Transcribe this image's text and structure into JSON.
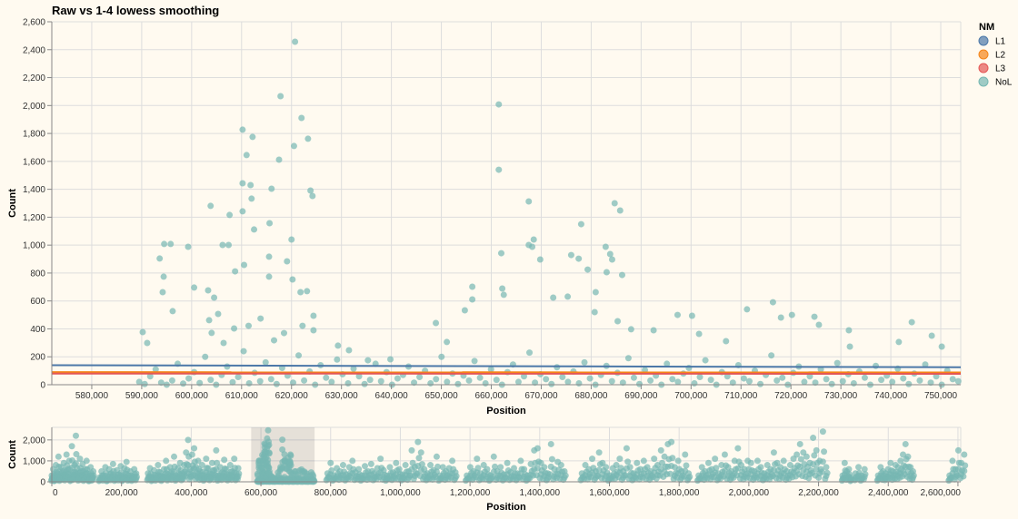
{
  "chart_data": [
    {
      "type": "scatter",
      "title": "Raw vs 1-4 lowess smoothing",
      "xlabel": "Position",
      "ylabel": "Count",
      "xlim": [
        572000,
        754000
      ],
      "ylim": [
        0,
        2600
      ],
      "x_ticks": [
        "580,000",
        "590,000",
        "600,000",
        "610,000",
        "620,000",
        "630,000",
        "640,000",
        "650,000",
        "660,000",
        "670,000",
        "680,000",
        "690,000",
        "700,000",
        "710,000",
        "720,000",
        "730,000",
        "740,000",
        "750,000"
      ],
      "x_tick_values": [
        580000,
        590000,
        600000,
        610000,
        620000,
        630000,
        640000,
        650000,
        660000,
        670000,
        680000,
        690000,
        700000,
        710000,
        720000,
        730000,
        740000,
        750000
      ],
      "y_ticks": [
        "0",
        "200",
        "400",
        "600",
        "800",
        "1,000",
        "1,200",
        "1,400",
        "1,600",
        "1,800",
        "2,000",
        "2,200",
        "2,400",
        "2,600"
      ],
      "y_tick_values": [
        0,
        200,
        400,
        600,
        800,
        1000,
        1200,
        1400,
        1600,
        1800,
        2000,
        2200,
        2400,
        2600
      ],
      "grid": true,
      "legend": {
        "title": "NM",
        "placement": "right",
        "entries": [
          {
            "label": "L1",
            "color": "#4c78a8"
          },
          {
            "label": "L2",
            "color": "#f58518"
          },
          {
            "label": "L3",
            "color": "#e45756"
          },
          {
            "label": "NoL",
            "color": "#76b7b2"
          }
        ]
      },
      "lines": [
        {
          "name": "L1",
          "color": "#4c78a8",
          "points": [
            [
              572000,
              140
            ],
            [
              754000,
              125
            ]
          ]
        },
        {
          "name": "L2",
          "color": "#f58518",
          "points": [
            [
              572000,
              90
            ],
            [
              754000,
              88
            ]
          ]
        },
        {
          "name": "L3",
          "color": "#e45756",
          "points": [
            [
              572000,
              80
            ],
            [
              754000,
              78
            ]
          ]
        }
      ],
      "points_series": "NoL",
      "points": [
        [
          594500,
          1008
        ],
        [
          595800,
          1008
        ],
        [
          593600,
          904
        ],
        [
          594400,
          774
        ],
        [
          594200,
          663
        ],
        [
          596200,
          527
        ],
        [
          590200,
          377
        ],
        [
          591100,
          299
        ],
        [
          599300,
          988
        ],
        [
          600500,
          696
        ],
        [
          603800,
          1281
        ],
        [
          607600,
          1216
        ],
        [
          606200,
          1001
        ],
        [
          607400,
          1001
        ],
        [
          610200,
          1242
        ],
        [
          610200,
          1827
        ],
        [
          612200,
          1775
        ],
        [
          611000,
          1645
        ],
        [
          610200,
          1443
        ],
        [
          611800,
          1430
        ],
        [
          612000,
          1333
        ],
        [
          612500,
          1112
        ],
        [
          616000,
          1404
        ],
        [
          615600,
          1157
        ],
        [
          617500,
          1612
        ],
        [
          617800,
          2067
        ],
        [
          620700,
          2457
        ],
        [
          622000,
          1911
        ],
        [
          623300,
          1762
        ],
        [
          620500,
          1710
        ],
        [
          620000,
          1040
        ],
        [
          623800,
          1391
        ],
        [
          624200,
          1352
        ],
        [
          620200,
          754
        ],
        [
          621800,
          663
        ],
        [
          623100,
          670
        ],
        [
          615500,
          917
        ],
        [
          619100,
          884
        ],
        [
          615500,
          774
        ],
        [
          610500,
          858
        ],
        [
          608700,
          812
        ],
        [
          605300,
          507
        ],
        [
          603300,
          676
        ],
        [
          604500,
          624
        ],
        [
          603500,
          462
        ],
        [
          604000,
          371
        ],
        [
          606400,
          299
        ],
        [
          608500,
          403
        ],
        [
          611400,
          422
        ],
        [
          613800,
          474
        ],
        [
          616500,
          318
        ],
        [
          618500,
          370
        ],
        [
          622200,
          422
        ],
        [
          624400,
          494
        ],
        [
          624400,
          390
        ],
        [
          629300,
          280
        ],
        [
          631500,
          247
        ],
        [
          635300,
          175
        ],
        [
          639800,
          182
        ],
        [
          648900,
          442
        ],
        [
          651100,
          306
        ],
        [
          654700,
          533
        ],
        [
          656200,
          702
        ],
        [
          656200,
          611
        ],
        [
          661500,
          1540
        ],
        [
          661500,
          2008
        ],
        [
          662000,
          942
        ],
        [
          662200,
          689
        ],
        [
          662500,
          644
        ],
        [
          667500,
          1001
        ],
        [
          667500,
          1313
        ],
        [
          668500,
          1040
        ],
        [
          668200,
          988
        ],
        [
          669800,
          897
        ],
        [
          672400,
          624
        ],
        [
          675300,
          631
        ],
        [
          676000,
          929
        ],
        [
          677500,
          903
        ],
        [
          678000,
          1150
        ],
        [
          679300,
          825
        ],
        [
          680900,
          663
        ],
        [
          682900,
          988
        ],
        [
          683800,
          936
        ],
        [
          684700,
          1300
        ],
        [
          685800,
          1248
        ],
        [
          683100,
          806
        ],
        [
          684200,
          897
        ],
        [
          686200,
          786
        ],
        [
          680700,
          520
        ],
        [
          685300,
          455
        ],
        [
          688000,
          397
        ],
        [
          692500,
          390
        ],
        [
          697300,
          500
        ],
        [
          700200,
          494
        ],
        [
          701600,
          364
        ],
        [
          707000,
          312
        ],
        [
          711200,
          540
        ],
        [
          716400,
          591
        ],
        [
          718000,
          481
        ],
        [
          720200,
          500
        ],
        [
          724700,
          487
        ],
        [
          725600,
          429
        ],
        [
          731600,
          390
        ],
        [
          731800,
          273
        ],
        [
          741600,
          306
        ],
        [
          744200,
          448
        ],
        [
          748200,
          351
        ],
        [
          750200,
          273
        ]
      ],
      "low_points_range": [
        589500,
        753500
      ],
      "low_points": [
        20,
        5,
        60,
        110,
        15,
        0,
        30,
        150,
        8,
        45,
        90,
        12,
        200,
        35,
        0,
        70,
        130,
        18,
        55,
        240,
        10,
        85,
        25,
        160,
        40,
        5,
        120,
        65,
        15,
        210,
        30,
        95,
        0,
        140,
        50,
        20,
        180,
        75,
        10,
        115,
        60,
        5,
        35,
        150,
        25,
        90,
        0,
        45,
        70,
        130,
        15,
        55,
        100,
        10,
        40,
        200,
        20,
        80,
        5,
        65,
        30,
        170,
        50,
        10,
        110,
        35,
        0,
        90,
        145,
        20,
        60,
        230,
        15,
        75,
        40,
        5,
        125,
        55,
        20,
        95,
        10,
        160,
        45,
        0,
        70,
        135,
        25,
        85,
        15,
        190,
        50,
        5,
        105,
        30,
        65,
        0,
        150,
        40,
        20,
        80,
        120,
        10,
        55,
        175,
        35,
        0,
        90,
        60,
        15,
        140,
        45,
        25,
        100,
        5,
        70,
        210,
        30,
        50,
        0,
        85,
        130,
        20,
        60,
        15,
        110,
        40,
        5,
        155,
        25,
        75,
        10,
        95,
        50,
        0,
        135,
        35,
        65,
        20,
        115,
        45,
        5,
        80,
        30,
        145,
        15,
        60,
        0,
        100,
        40,
        25
      ]
    },
    {
      "type": "scatter",
      "xlabel": "Position",
      "ylabel": "Count",
      "xlim": [
        0,
        2608000
      ],
      "ylim": [
        0,
        2600
      ],
      "x_ticks": [
        "0",
        "200,000",
        "400,000",
        "600,000",
        "800,000",
        "1,000,000",
        "1,200,000",
        "1,400,000",
        "1,600,000",
        "1,800,000",
        "2,000,000",
        "2,200,000",
        "2,400,000",
        "2,600,000"
      ],
      "x_tick_values": [
        0,
        200000,
        400000,
        600000,
        800000,
        1000000,
        1200000,
        1400000,
        1600000,
        1800000,
        2000000,
        2200000,
        2400000,
        2600000
      ],
      "y_ticks": [
        "0",
        "1,000",
        "2,000"
      ],
      "y_tick_values": [
        0,
        1000,
        2000
      ],
      "grid": true,
      "brush": [
        572000,
        754000
      ],
      "bands": [
        {
          "range": [
            0,
            119000
          ],
          "counts": [
            300,
            600,
            150,
            800,
            400,
            1200,
            250,
            700,
            500,
            900,
            350,
            1300,
            600,
            1000,
            200,
            1700,
            450,
            800,
            2200,
            650,
            300,
            1100,
            500,
            850,
            250,
            600,
            1000,
            400,
            150,
            700,
            300,
            500
          ]
        },
        {
          "range": [
            137000,
            242000
          ],
          "counts": [
            200,
            500,
            300,
            700,
            150,
            600,
            400,
            850,
            250,
            550,
            350,
            750,
            200,
            650,
            950,
            300,
            500,
            250,
            600,
            400
          ]
        },
        {
          "range": [
            276000,
            535000
          ],
          "counts": [
            400,
            650,
            200,
            550,
            300,
            800,
            450,
            250,
            600,
            1000,
            350,
            700,
            500,
            1200,
            300,
            650,
            900,
            400,
            800,
            1400,
            2000,
            600,
            1300,
            1600,
            700,
            1000,
            500,
            800,
            300,
            1100,
            650,
            400,
            900,
            550,
            1500,
            300,
            700,
            450,
            1050,
            600,
            350,
            800,
            500,
            1100,
            400,
            650
          ]
        },
        {
          "range": [
            791000,
            1158000
          ],
          "counts": [
            400,
            900,
            300,
            650,
            500,
            800,
            350,
            700,
            1000,
            450,
            600,
            300,
            750,
            500,
            850,
            400,
            650,
            1100,
            550,
            300,
            700,
            450,
            900,
            600,
            350,
            800,
            500,
            1500,
            700,
            1900,
            1400,
            600,
            400,
            800,
            550,
            1200,
            300,
            700,
            500,
            650,
            1000,
            450
          ]
        },
        {
          "range": [
            1191000,
            1471000
          ],
          "counts": [
            300,
            700,
            500,
            1100,
            400,
            800,
            600,
            300,
            1200,
            500,
            700,
            350,
            900,
            450,
            650,
            400,
            1000,
            600,
            300,
            850,
            1500,
            1600,
            900,
            700,
            400,
            1800,
            600,
            950,
            800,
            500
          ]
        },
        {
          "range": [
            1521000,
            1827000
          ],
          "counts": [
            400,
            800,
            600,
            1100,
            500,
            1400,
            900,
            700,
            300,
            650,
            800,
            1100,
            500,
            1600,
            700,
            400,
            900,
            600,
            1000,
            700,
            500,
            1100,
            800,
            1500,
            1200,
            1800,
            1900,
            700,
            1000,
            500,
            1300,
            400
          ]
        },
        {
          "range": [
            1856000,
            2222000
          ],
          "counts": [
            300,
            700,
            500,
            900,
            600,
            1100,
            400,
            800,
            1300,
            700,
            500,
            1000,
            1600,
            800,
            600,
            1000,
            900,
            500,
            1000,
            700,
            400,
            800,
            600,
            1400,
            900,
            700,
            1000,
            500,
            800,
            1100,
            1300,
            1800,
            1400,
            1200,
            900,
            2100,
            1500,
            1000,
            2400,
            700
          ]
        },
        {
          "range": [
            2269000,
            2293000
          ],
          "counts": [
            300,
            900,
            500,
            600,
            200
          ]
        },
        {
          "range": [
            2306000,
            2332000
          ],
          "counts": [
            400,
            700,
            300,
            600
          ]
        },
        {
          "range": [
            2371000,
            2471000
          ],
          "counts": [
            300,
            700,
            500,
            400,
            600,
            900,
            500,
            800,
            700,
            1000,
            1300,
            1800,
            1200,
            700,
            500
          ]
        },
        {
          "range": [
            2576000,
            2618000
          ],
          "counts": [
            300,
            1000,
            600,
            1500,
            900,
            1300
          ]
        }
      ]
    }
  ]
}
